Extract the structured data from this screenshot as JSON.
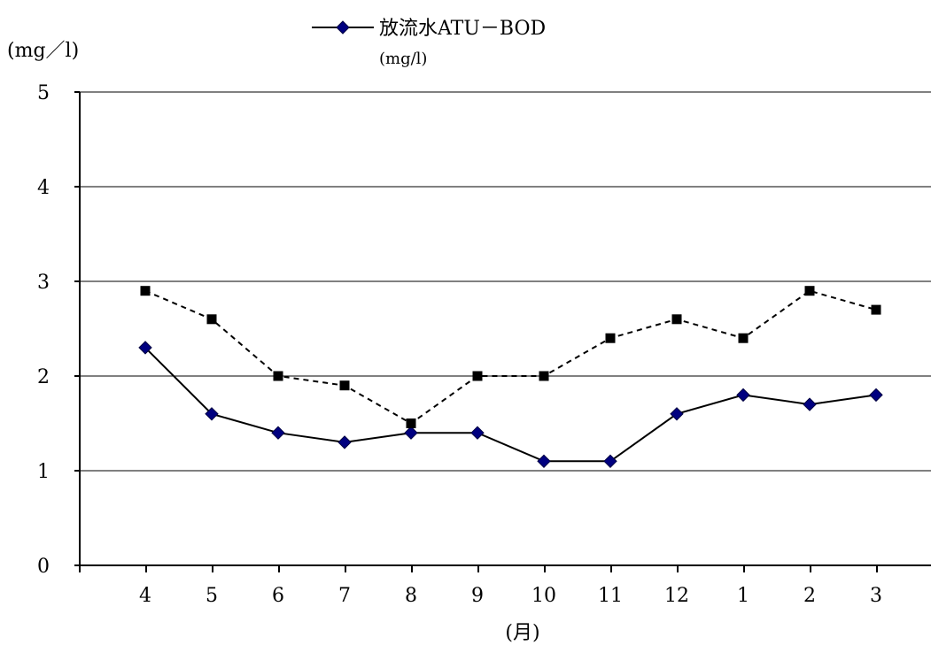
{
  "chart_data": {
    "type": "line",
    "ylabel": "(mg／l)",
    "xlabel": "(月)",
    "ylim": [
      0,
      5
    ],
    "yticks": [
      0,
      1,
      2,
      3,
      4,
      5
    ],
    "grid": true,
    "legend_position": "top",
    "categories": [
      "4",
      "5",
      "6",
      "7",
      "8",
      "9",
      "10",
      "11",
      "12",
      "1",
      "2",
      "3"
    ],
    "series": [
      {
        "name": "放流水ATU－BOD",
        "name_sub": "(mg/l)",
        "style": "solid",
        "marker": "diamond",
        "color": "#000000",
        "marker_color": "#000080",
        "values": [
          2.3,
          1.6,
          1.4,
          1.3,
          1.4,
          1.4,
          1.1,
          1.1,
          1.6,
          1.8,
          1.7,
          1.8
        ]
      },
      {
        "style": "dashed",
        "marker": "square",
        "color": "#000000",
        "marker_color": "#000000",
        "values": [
          2.9,
          2.6,
          2.0,
          1.9,
          1.5,
          2.0,
          2.0,
          2.4,
          2.6,
          2.4,
          2.9,
          2.7
        ]
      }
    ]
  }
}
